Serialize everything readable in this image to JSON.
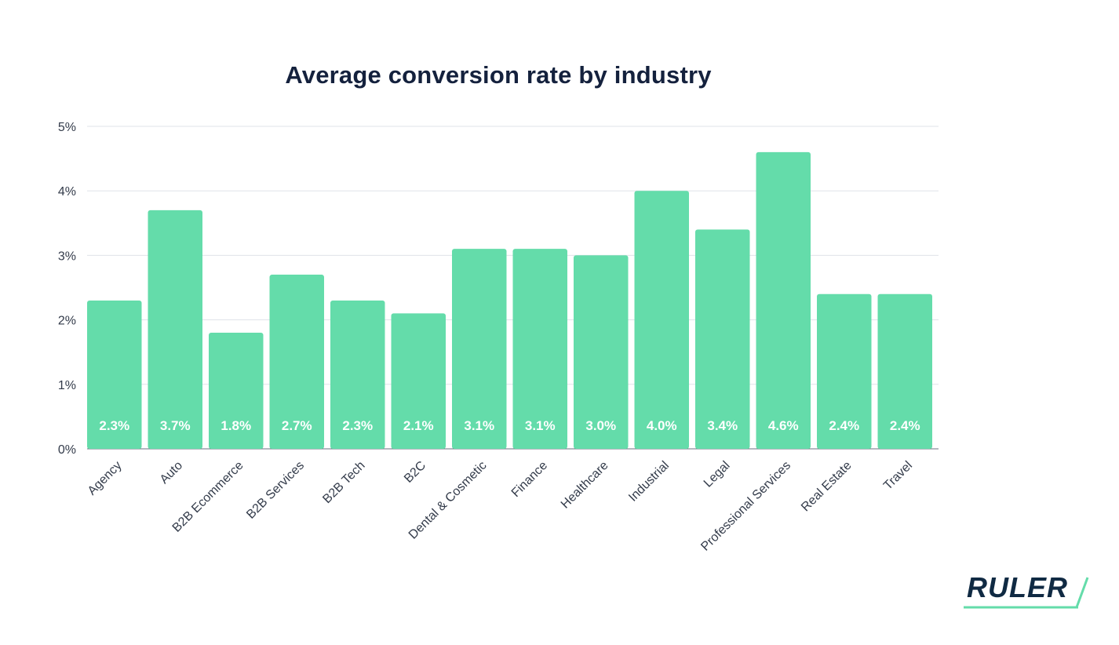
{
  "chart_data": {
    "type": "bar",
    "title": "Average conversion rate by industry",
    "xlabel": "",
    "ylabel": "",
    "categories": [
      "Agency",
      "Auto",
      "B2B Ecommerce",
      "B2B Services",
      "B2B Tech",
      "B2C",
      "Dental & Cosmetic",
      "Finance",
      "Healthcare",
      "Industrial",
      "Legal",
      "Professional Services",
      "Real Estate",
      "Travel"
    ],
    "values": [
      2.3,
      3.7,
      1.8,
      2.7,
      2.3,
      2.1,
      3.1,
      3.1,
      3.0,
      4.0,
      3.4,
      4.6,
      2.4,
      2.4
    ],
    "value_labels": [
      "2.3%",
      "3.7%",
      "1.8%",
      "2.7%",
      "2.3%",
      "2.1%",
      "3.1%",
      "3.1%",
      "3.0%",
      "4.0%",
      "3.4%",
      "4.6%",
      "2.4%",
      "2.4%"
    ],
    "yticks": [
      "0%",
      "1%",
      "2%",
      "3%",
      "4%",
      "5%"
    ],
    "ylim": [
      0,
      5
    ],
    "grid": true,
    "bar_color": "#64dcaa"
  },
  "logo": {
    "text": "RULER",
    "accent_color": "#64dcaa"
  }
}
